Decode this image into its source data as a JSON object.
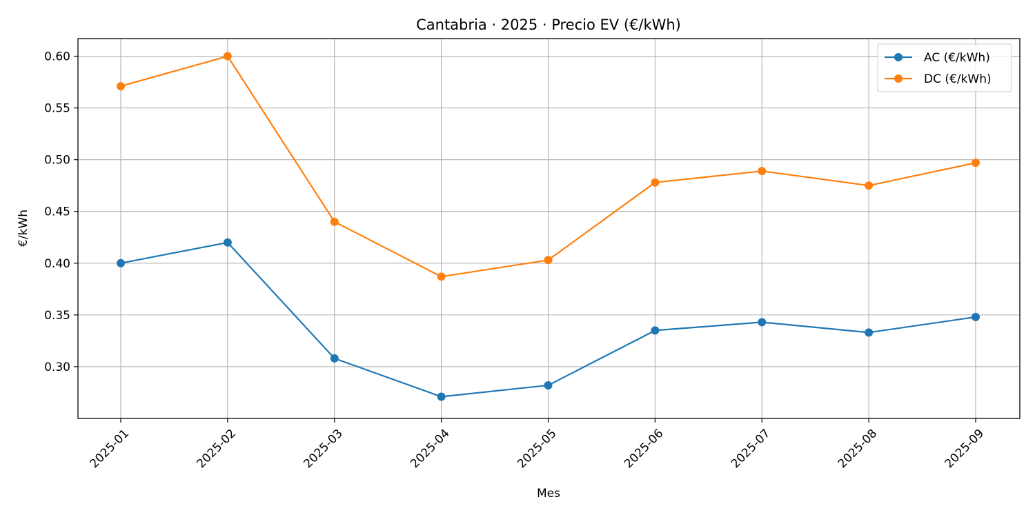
{
  "chart_data": {
    "type": "line",
    "title": "Cantabria · 2025 · Precio EV (€/kWh)",
    "xlabel": "Mes",
    "ylabel": "€/kWh",
    "x": [
      "2025-01",
      "2025-02",
      "2025-03",
      "2025-04",
      "2025-05",
      "2025-06",
      "2025-07",
      "2025-08",
      "2025-09"
    ],
    "ylim": [
      0.25,
      0.617
    ],
    "yticks": [
      0.3,
      0.35,
      0.4,
      0.45,
      0.5,
      0.55,
      0.6
    ],
    "ytick_labels": [
      "0.30",
      "0.35",
      "0.40",
      "0.45",
      "0.50",
      "0.55",
      "0.60"
    ],
    "grid": true,
    "legend_position": "top-right",
    "series": [
      {
        "name": "AC (€/kWh)",
        "color": "#1f77b4",
        "marker": "circle",
        "values": [
          0.4,
          0.42,
          0.308,
          0.271,
          0.282,
          0.335,
          0.343,
          0.333,
          0.348
        ]
      },
      {
        "name": "DC (€/kWh)",
        "color": "#ff7f0e",
        "marker": "circle",
        "values": [
          0.571,
          0.6,
          0.44,
          0.387,
          0.403,
          0.478,
          0.489,
          0.475,
          0.497
        ]
      }
    ]
  }
}
